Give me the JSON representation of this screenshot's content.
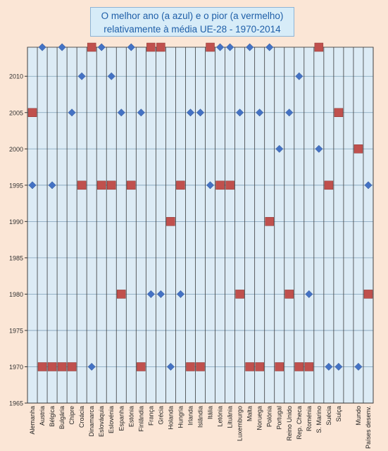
{
  "chart_data": {
    "type": "scatter",
    "title_line1": "O melhor ano  (a azul) e o pior  (a vermelho)",
    "title_line2": "relativamente à média UE-28 - 1970-2014",
    "ylim": [
      1965,
      2014
    ],
    "yticks": [
      1965,
      1970,
      1975,
      1980,
      1985,
      1990,
      1995,
      2000,
      2005,
      2010
    ],
    "grid": true,
    "colors": {
      "best": "#4472c4",
      "worst": "#c0504d",
      "plot_bg": "#dcebf5",
      "page_bg": "#fbe6d6"
    },
    "categories": [
      "Alemanha",
      "Austria",
      "Bélgica",
      "Bulgária",
      "Chipre",
      "Croácia",
      "Dinamarca",
      "Eslováquia",
      "Eslovénia",
      "Espanha",
      "Estónia",
      "Finlândia",
      "França",
      "Grécia",
      "Holanda",
      "Hungria",
      "Irlanda",
      "Islândia",
      "Itália",
      "Letónia",
      "Lituânia",
      "Luxemburgo",
      "Malta",
      "Noruega",
      "Polónia",
      "Portugal",
      "Reino Unido",
      "Rep. Checa",
      "Roménia",
      "S. Marino",
      "Suécia",
      "Suiça",
      "",
      "Mundo",
      "Países desenv."
    ],
    "series": [
      {
        "key": "best",
        "values": [
          1995,
          2014,
          1995,
          2014,
          2005,
          2010,
          1970,
          2014,
          2010,
          2005,
          2014,
          2005,
          1980,
          1980,
          1970,
          1980,
          2005,
          2005,
          1995,
          2014,
          2014,
          2005,
          2014,
          2005,
          2014,
          2000,
          2005,
          2010,
          1980,
          2000,
          1970,
          1970,
          null,
          1970,
          1995
        ]
      },
      {
        "key": "worst",
        "values": [
          2005,
          1970,
          1970,
          1970,
          1970,
          1995,
          2014,
          1995,
          1995,
          1980,
          1995,
          1970,
          2014,
          2014,
          1990,
          1995,
          1970,
          1970,
          2014,
          1995,
          1995,
          1980,
          1970,
          1970,
          1990,
          1970,
          1980,
          1970,
          1970,
          2014,
          1995,
          2005,
          null,
          2000,
          1980
        ]
      }
    ]
  }
}
